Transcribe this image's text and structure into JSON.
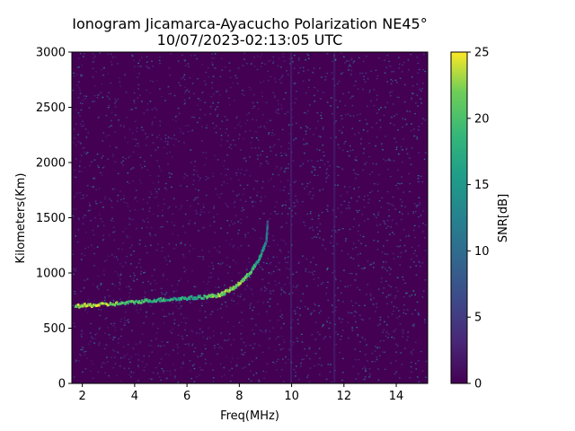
{
  "chart_data": {
    "type": "heatmap",
    "title": "Ionogram Jicamarca-Ayacucho Polarization NE45°",
    "subtitle": "10/07/2023-02:13:05 UTC",
    "xlabel": "Freq(MHz)",
    "ylabel": "Kilometers(Km)",
    "xlim": [
      1.6,
      15.2
    ],
    "ylim": [
      0,
      3000
    ],
    "xticks": [
      2,
      4,
      6,
      8,
      10,
      12,
      14
    ],
    "yticks": [
      0,
      500,
      1000,
      1500,
      2000,
      2500,
      3000
    ],
    "colorbar": {
      "label": "SNR[dB]",
      "range": [
        0,
        25
      ],
      "ticks": [
        0,
        5,
        10,
        15,
        20,
        25
      ],
      "colormap": "viridis"
    },
    "grid": false,
    "trace": {
      "description": "strong echo trace",
      "points": [
        {
          "x": 1.7,
          "y": 710,
          "snr": 24
        },
        {
          "x": 2.5,
          "y": 720,
          "snr": 24
        },
        {
          "x": 3.5,
          "y": 735,
          "snr": 20
        },
        {
          "x": 4.5,
          "y": 760,
          "snr": 18
        },
        {
          "x": 5.5,
          "y": 775,
          "snr": 17
        },
        {
          "x": 6.5,
          "y": 790,
          "snr": 18
        },
        {
          "x": 7.2,
          "y": 810,
          "snr": 22
        },
        {
          "x": 7.8,
          "y": 880,
          "snr": 22
        },
        {
          "x": 8.3,
          "y": 990,
          "snr": 20
        },
        {
          "x": 8.7,
          "y": 1120,
          "snr": 16
        },
        {
          "x": 9.0,
          "y": 1300,
          "snr": 12
        },
        {
          "x": 9.05,
          "y": 1480,
          "snr": 8
        }
      ]
    },
    "background_snr_range": [
      0,
      6
    ],
    "colors": {
      "background": "#440154",
      "mid": "#21918c",
      "high": "#fde725"
    }
  }
}
